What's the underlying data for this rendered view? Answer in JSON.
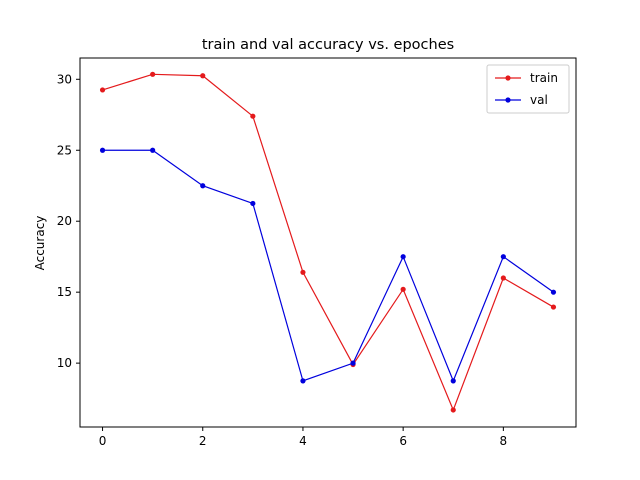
{
  "chart_data": {
    "type": "line",
    "title": "train and val accuracy vs. epoches",
    "xlabel": "",
    "ylabel": "Accuracy",
    "x": [
      0,
      1,
      2,
      3,
      4,
      5,
      6,
      7,
      8,
      9
    ],
    "xlim": [
      -0.45,
      9.45
    ],
    "ylim": [
      5.5,
      31.5
    ],
    "xticks": [
      0,
      2,
      4,
      6,
      8
    ],
    "yticks": [
      10,
      15,
      20,
      25,
      30
    ],
    "grid": false,
    "legend": "top-right",
    "series": [
      {
        "name": "train",
        "color": "#e41a1c",
        "marker": "circle",
        "values": [
          29.25,
          30.35,
          30.25,
          27.4,
          16.4,
          9.9,
          15.2,
          6.7,
          16.0,
          13.95
        ]
      },
      {
        "name": "val",
        "color": "#0000dd",
        "marker": "circle",
        "values": [
          25.0,
          25.0,
          22.5,
          21.25,
          8.75,
          10.0,
          17.5,
          8.75,
          17.5,
          15.0
        ]
      }
    ]
  }
}
